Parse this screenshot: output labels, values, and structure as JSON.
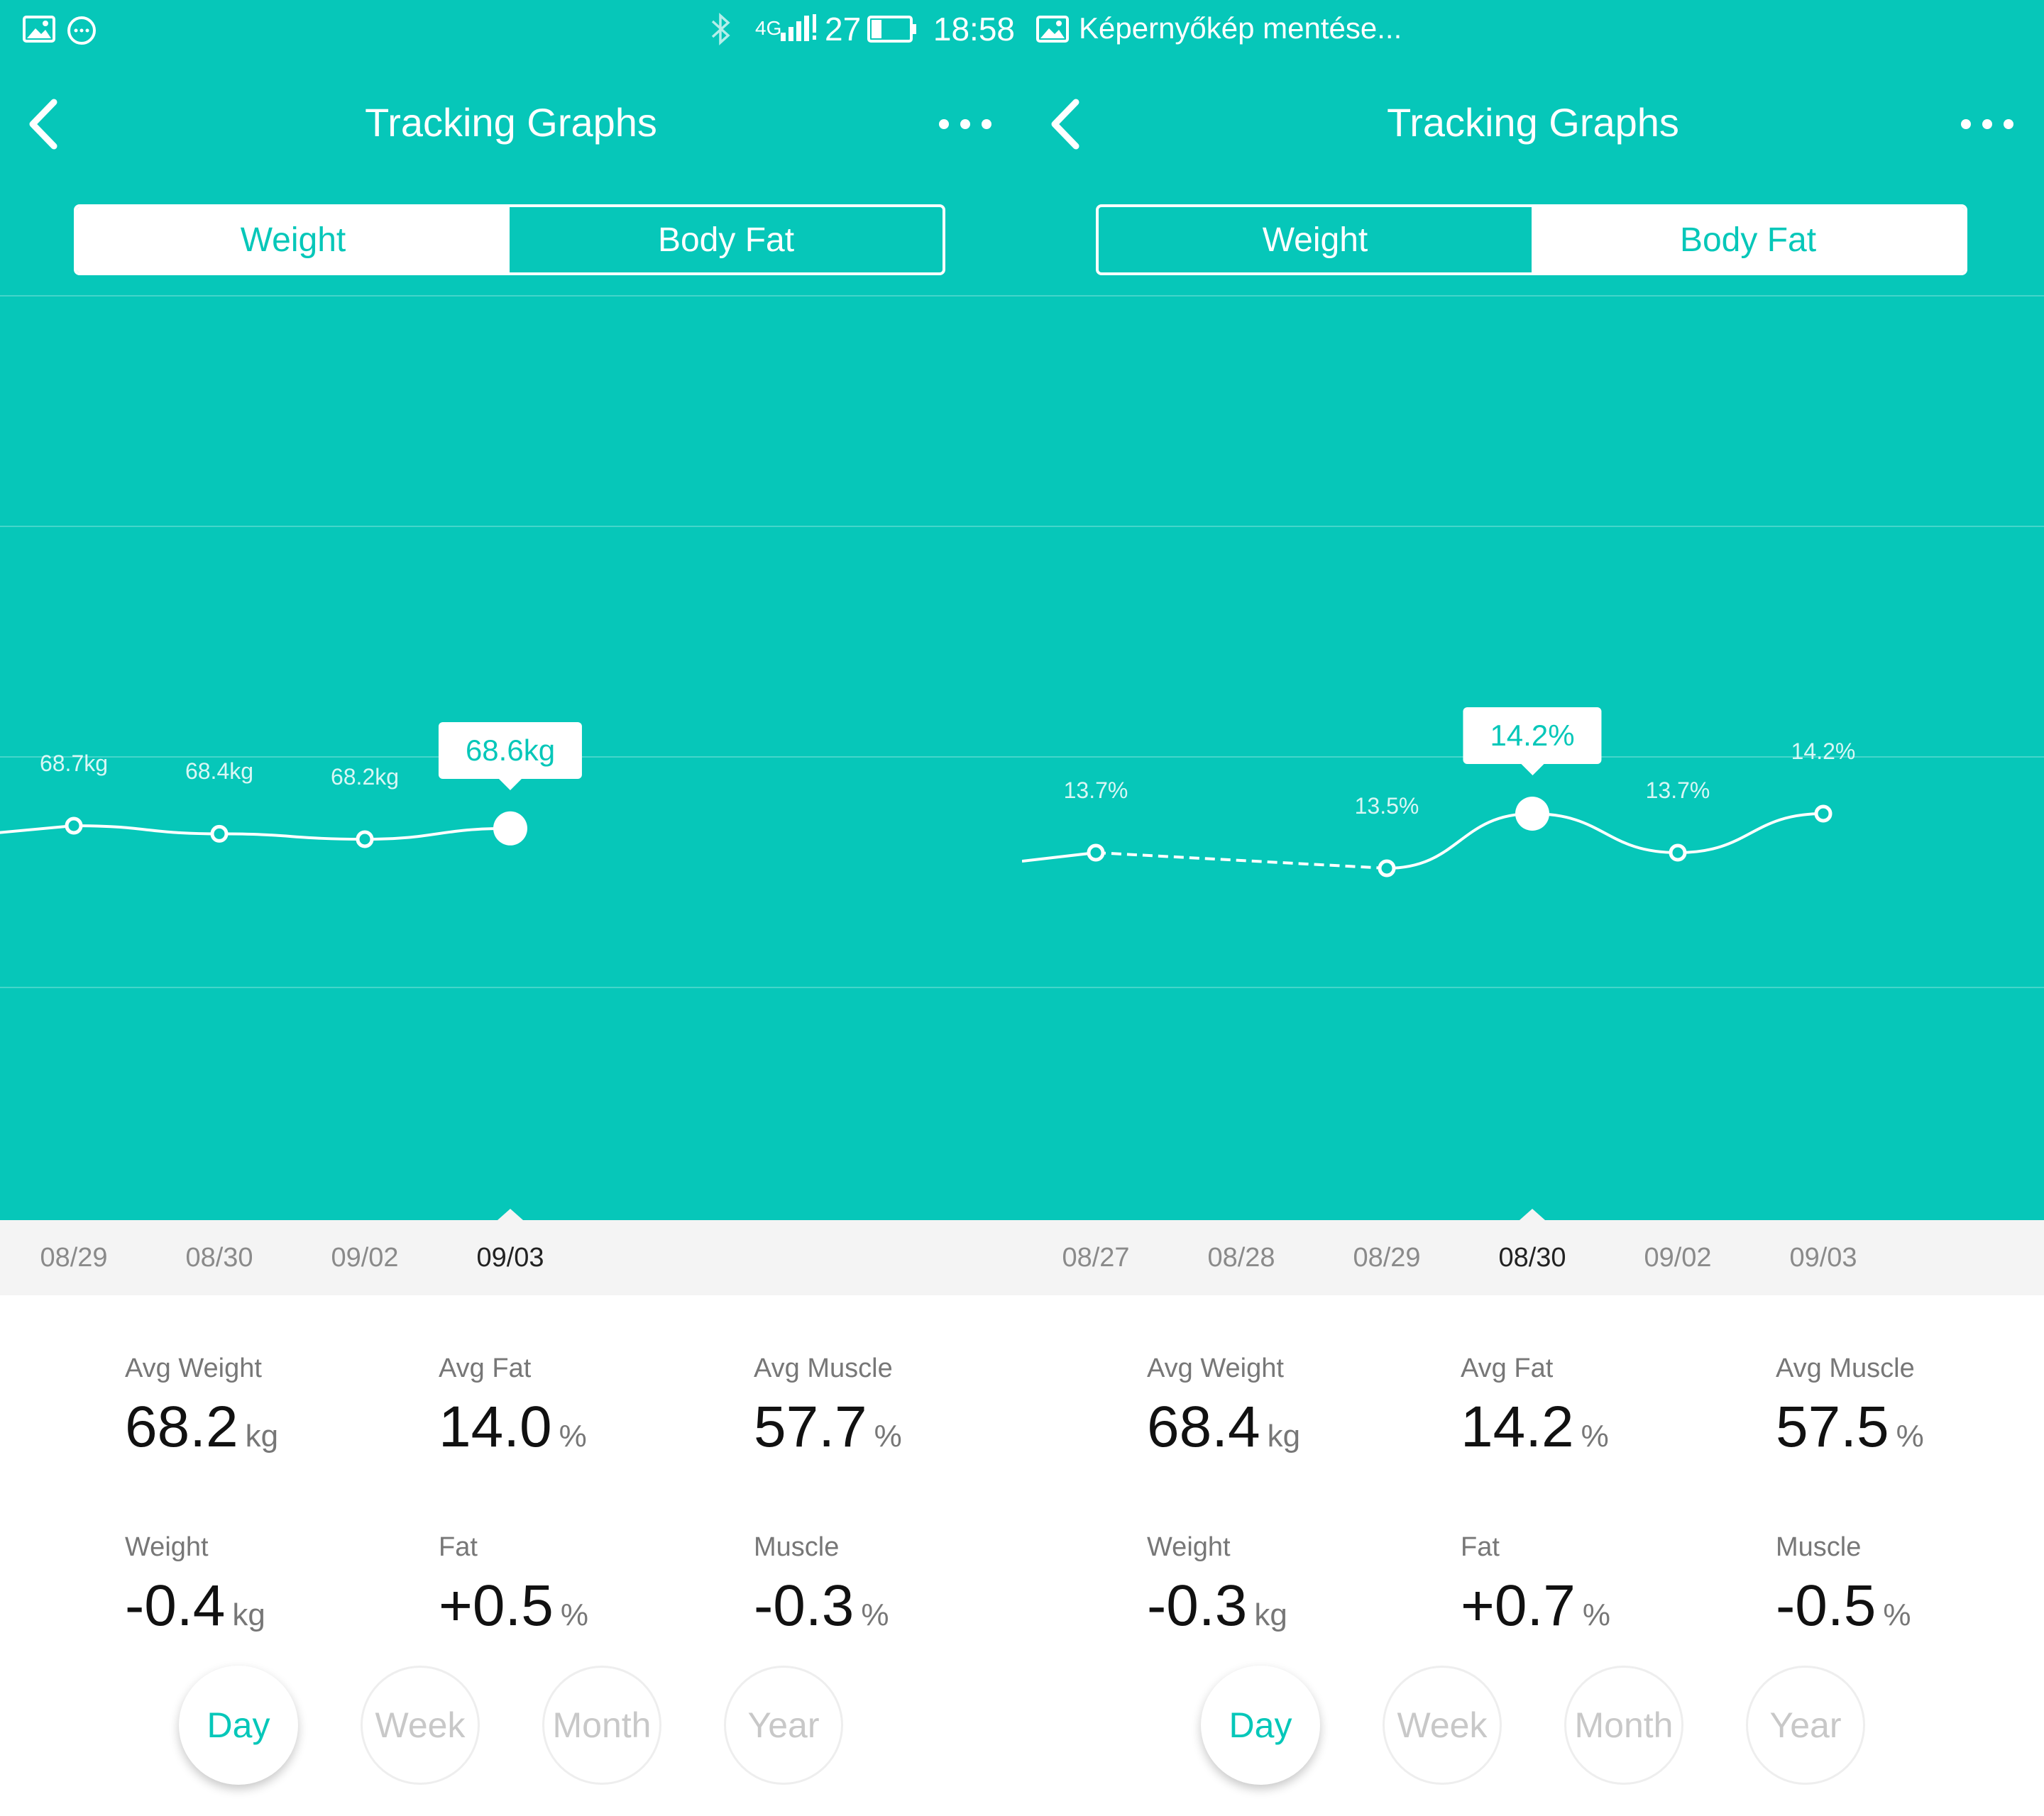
{
  "status_bar": {
    "signal": "4G",
    "battery": "27",
    "time": "18:58",
    "notification": "Képernyőkép mentése..."
  },
  "left": {
    "title": "Tracking Graphs",
    "tabs": [
      {
        "label": "Weight",
        "active": true
      },
      {
        "label": "Body Fat",
        "active": false
      }
    ],
    "chart_data": {
      "type": "line",
      "x": [
        "08/29",
        "08/30",
        "09/02",
        "09/03"
      ],
      "y": [
        68.7,
        68.4,
        68.2,
        68.6
      ],
      "labels": [
        "68.7kg",
        "68.4kg",
        "68.2kg",
        "68.6kg"
      ],
      "selected": "09/03",
      "tooltip": "68.6kg",
      "grid": true
    },
    "stats": {
      "avg_weight": {
        "label": "Avg Weight",
        "value": "68.2",
        "unit": "kg"
      },
      "avg_fat": {
        "label": "Avg Fat",
        "value": "14.0",
        "unit": "%"
      },
      "avg_muscle": {
        "label": "Avg Muscle",
        "value": "57.7",
        "unit": "%"
      },
      "weight": {
        "label": "Weight",
        "value": "-0.4",
        "unit": "kg"
      },
      "fat": {
        "label": "Fat",
        "value": "+0.5",
        "unit": "%"
      },
      "muscle": {
        "label": "Muscle",
        "value": "-0.3",
        "unit": "%"
      }
    },
    "periods": [
      {
        "label": "Day",
        "active": true
      },
      {
        "label": "Week",
        "active": false
      },
      {
        "label": "Month",
        "active": false
      },
      {
        "label": "Year",
        "active": false
      }
    ]
  },
  "right": {
    "title": "Tracking Graphs",
    "tabs": [
      {
        "label": "Weight",
        "active": false
      },
      {
        "label": "Body Fat",
        "active": true
      }
    ],
    "chart_data": {
      "type": "line",
      "x": [
        "08/27",
        "08/28",
        "08/29",
        "08/30",
        "09/02",
        "09/03"
      ],
      "y": [
        13.7,
        null,
        13.5,
        14.2,
        13.7,
        14.2
      ],
      "labels": [
        "13.7%",
        "",
        "13.5%",
        "14.2%",
        "13.7%",
        "14.2%"
      ],
      "selected": "08/30",
      "tooltip": "14.2%",
      "grid": true
    },
    "stats": {
      "avg_weight": {
        "label": "Avg Weight",
        "value": "68.4",
        "unit": "kg"
      },
      "avg_fat": {
        "label": "Avg Fat",
        "value": "14.2",
        "unit": "%"
      },
      "avg_muscle": {
        "label": "Avg Muscle",
        "value": "57.5",
        "unit": "%"
      },
      "weight": {
        "label": "Weight",
        "value": "-0.3",
        "unit": "kg"
      },
      "fat": {
        "label": "Fat",
        "value": "+0.7",
        "unit": "%"
      },
      "muscle": {
        "label": "Muscle",
        "value": "-0.5",
        "unit": "%"
      }
    },
    "periods": [
      {
        "label": "Day",
        "active": true
      },
      {
        "label": "Week",
        "active": false
      },
      {
        "label": "Month",
        "active": false
      },
      {
        "label": "Year",
        "active": false
      }
    ]
  },
  "colors": {
    "accent": "#06C7B9",
    "date_strip": "#F4F4F4",
    "text_dark": "#111111",
    "text_muted": "#777777"
  }
}
